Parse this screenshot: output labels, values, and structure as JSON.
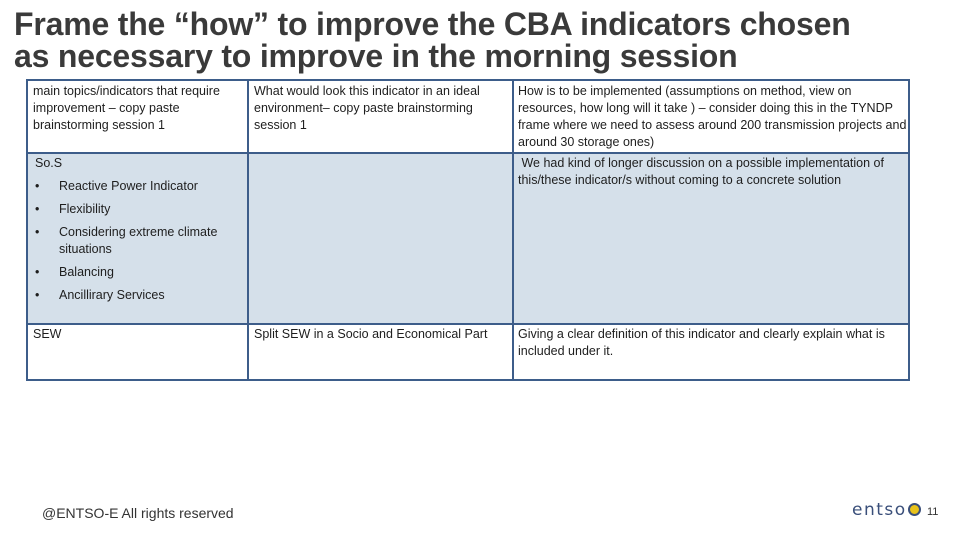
{
  "title": {
    "line1": "Frame the “how” to improve the CBA indicators chosen",
    "line2": "as necessary to improve in the morning session"
  },
  "table": {
    "headers": [
      "main topics/indicators that require improvement – copy paste brainstorming session 1",
      "What would look this indicator in an ideal environment– copy paste brainstorming session 1",
      "How is to be implemented (assumptions on method, view on resources, how long will it take ) – consider doing this in the TYNDP frame where we need to assess around 200 transmission projects and around 30 storage ones)"
    ],
    "row1": {
      "topic": "So.S",
      "bullet_glyph": "•",
      "bullets": [
        "Reactive Power Indicator",
        "Flexibility",
        "Considering extreme climate situations",
        "Balancing",
        "Ancillirary Services"
      ],
      "ideal": "",
      "how": " We had kind of longer discussion on a possible implementation of this/these indicator/s without coming to a concrete solution"
    },
    "row2": {
      "topic": "SEW",
      "ideal": "Split SEW in a Socio and Economical Part",
      "how": "Giving a clear definition of this indicator and clearly explain what is included under it."
    }
  },
  "footer": {
    "copyright": "@ENTSO-E All rights reserved",
    "logo_text": "entso",
    "page_number": "11"
  },
  "colors": {
    "border": "#3d5d8a",
    "shade": "#d5e0ea",
    "logo_accent": "#e8c21a"
  }
}
